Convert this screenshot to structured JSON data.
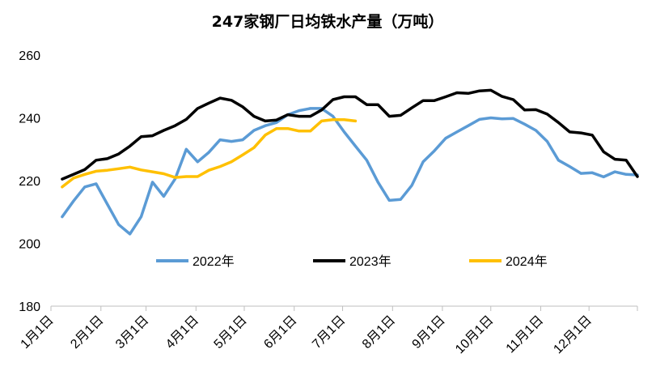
{
  "chart_data": {
    "type": "line",
    "title": "247家钢厂日均铁水产量（万吨）",
    "xlabel": "",
    "ylabel": "",
    "ylim": [
      180,
      260
    ],
    "y_ticks": [
      "180",
      "200",
      "220",
      "240",
      "260"
    ],
    "x_range": [
      1,
      53
    ],
    "x_ticks": [
      {
        "label": "1月1日",
        "week": 1
      },
      {
        "label": "2月1日",
        "week": 5.43
      },
      {
        "label": "3月1日",
        "week": 9.43
      },
      {
        "label": "4月1日",
        "week": 13.86
      },
      {
        "label": "5月1日",
        "week": 18.14
      },
      {
        "label": "6月1日",
        "week": 22.57
      },
      {
        "label": "7月1日",
        "week": 26.86
      },
      {
        "label": "8月1日",
        "week": 31.29
      },
      {
        "label": "9月1日",
        "week": 35.71
      },
      {
        "label": "10月1日",
        "week": 40
      },
      {
        "label": "11月1日",
        "week": 44.43
      },
      {
        "label": "12月1日",
        "week": 48.71
      }
    ],
    "grid": false,
    "legend_position": "inside-bottom",
    "series": [
      {
        "name": "2022年",
        "color": "#5B9BD5",
        "x": [
          2,
          3,
          4,
          5,
          6,
          7,
          8,
          9,
          10,
          11,
          12,
          13,
          14,
          15,
          16,
          17,
          18,
          19,
          20,
          21,
          22,
          23,
          24,
          25,
          26,
          27,
          28,
          29,
          30,
          31,
          32,
          33,
          34,
          35,
          36,
          37,
          38,
          39,
          40,
          41,
          42,
          43,
          44,
          45,
          46,
          47,
          48,
          49,
          50,
          51,
          52,
          53
        ],
        "values": [
          208.5,
          213.5,
          218,
          219,
          212.5,
          206,
          203,
          208.5,
          219.5,
          215,
          220.5,
          230,
          226,
          229,
          233,
          232.5,
          233,
          236,
          237.5,
          238.5,
          241,
          242.3,
          243,
          243,
          240.5,
          235.5,
          231,
          226.5,
          219.5,
          213.7,
          214,
          218.5,
          226,
          229.5,
          233.5,
          235.5,
          237.5,
          239.5,
          240,
          239.7,
          239.8,
          238,
          236,
          232.5,
          226.5,
          224.5,
          222.3,
          222.5,
          221.2,
          222.8,
          222,
          221.8
        ]
      },
      {
        "name": "2023年",
        "color": "#000000",
        "x": [
          2,
          3,
          4,
          5,
          6,
          7,
          8,
          9,
          10,
          11,
          12,
          13,
          14,
          15,
          16,
          17,
          18,
          19,
          20,
          21,
          22,
          23,
          24,
          25,
          26,
          27,
          28,
          29,
          30,
          31,
          32,
          33,
          34,
          35,
          36,
          37,
          38,
          39,
          40,
          41,
          42,
          43,
          44,
          45,
          46,
          47,
          48,
          49,
          50,
          51,
          52,
          53
        ],
        "values": [
          220.5,
          222,
          223.5,
          226.5,
          227,
          228.5,
          231,
          234,
          234.3,
          236,
          237.5,
          239.5,
          243,
          244.7,
          246.3,
          245.6,
          243.5,
          240.5,
          239,
          239.3,
          241,
          240.5,
          240.5,
          242.5,
          245.8,
          246.7,
          246.7,
          244.2,
          244.2,
          240.5,
          240.8,
          243.2,
          245.5,
          245.5,
          246.7,
          248,
          247.8,
          248.6,
          248.8,
          246.8,
          245.8,
          242.5,
          242.6,
          241.2,
          238.5,
          235.5,
          235.2,
          234.5,
          229.2,
          226.8,
          226.5,
          221.3
        ]
      },
      {
        "name": "2024年",
        "color": "#FFC000",
        "x": [
          2,
          3,
          4,
          5,
          6,
          7,
          8,
          9,
          10,
          11,
          12,
          13,
          14,
          15,
          16,
          17,
          18,
          19,
          20,
          21,
          22,
          23,
          24,
          25,
          26,
          27,
          28
        ],
        "values": [
          218,
          220.8,
          222,
          223,
          223.3,
          223.8,
          224.3,
          223.4,
          222.8,
          222.2,
          221,
          221.3,
          221.3,
          223.3,
          224.5,
          226,
          228.2,
          230.5,
          234.5,
          236.6,
          236.6,
          235.8,
          235.8,
          239,
          239.4,
          239.4,
          239
        ]
      }
    ]
  }
}
